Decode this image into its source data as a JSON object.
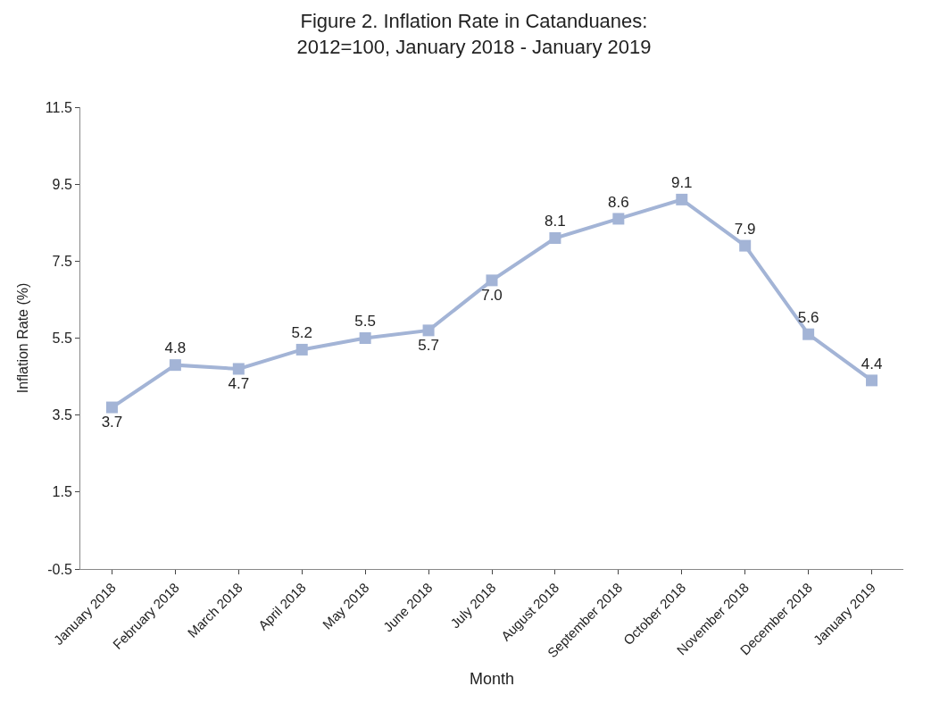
{
  "chart_data": {
    "type": "line",
    "title": "Figure 2. Inflation Rate in Catanduanes:\n2012=100, January 2018 - January 2019",
    "xlabel": "Month",
    "ylabel": "Inflation Rate (%)",
    "categories": [
      "January 2018",
      "February 2018",
      "March 2018",
      "April 2018",
      "May 2018",
      "June 2018",
      "July 2018",
      "August 2018",
      "September 2018",
      "October 2018",
      "November 2018",
      "December 2018",
      "January 2019"
    ],
    "series": [
      {
        "color": "#a3b4d6",
        "values": [
          3.7,
          4.8,
          4.7,
          5.2,
          5.5,
          5.7,
          7.0,
          8.1,
          8.6,
          9.1,
          7.9,
          5.6,
          4.4
        ]
      }
    ],
    "ylim": [
      -0.5,
      11.5
    ],
    "yticks": [
      -0.5,
      1.5,
      3.5,
      5.5,
      7.5,
      9.5,
      11.5
    ],
    "value_labels": [
      "3.7",
      "4.8",
      "4.7",
      "5.2",
      "5.5",
      "5.7",
      "7.0",
      "8.1",
      "8.6",
      "9.1",
      "7.9",
      "5.6",
      "4.4"
    ],
    "grid": false,
    "legend": false,
    "marker": "square",
    "line_style": "solid"
  }
}
